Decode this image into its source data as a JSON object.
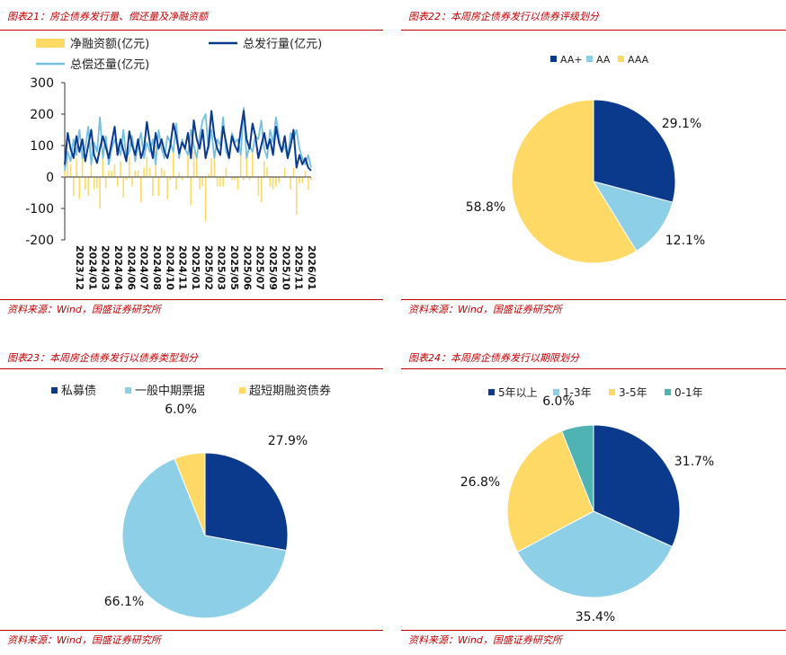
{
  "panels": [
    {
      "title": "图表21：房企债券发行量、偿还量及净融资额",
      "source": "资料来源：Wind，国盛证券研究所"
    },
    {
      "title": "图表22：本周房企债券发行以债券评级划分",
      "source": "资料来源：Wind，国盛证券研究所"
    },
    {
      "title": "图表23：本周房企债券发行以债券类型划分",
      "source": "资料来源：Wind，国盛证券研究所"
    },
    {
      "title": "图表24：本周房企债券发行以期限划分",
      "source": "资料来源：Wind，国盛证券研究所"
    }
  ],
  "chart_data": [
    {
      "type": "line",
      "title": "",
      "ylim": [
        -200,
        300
      ],
      "yticks": [
        "300",
        "200",
        "100",
        "0",
        "-100",
        "-200"
      ],
      "x_tick_labels": [
        "2023/12",
        "2024/01",
        "2024/03",
        "2024/04",
        "2024/06",
        "2024/07",
        "2024/08",
        "2024/10",
        "2024/11",
        "2025/01",
        "2025/02",
        "2025/03",
        "2025/05",
        "2025/06",
        "2025/07",
        "2025/09",
        "2025/10",
        "2025/11",
        "2026/01"
      ],
      "legend": [
        "净融资额(亿元)",
        "总发行量(亿元)",
        "总偿还量(亿元)"
      ],
      "colors": {
        "net": "#ffd966",
        "issue": "#0b3a8c",
        "repay": "#74c0e0"
      },
      "series": [
        {
          "name": "总发行量(亿元)",
          "values": [
            40,
            140,
            90,
            60,
            130,
            80,
            120,
            50,
            100,
            150,
            70,
            45,
            90,
            130,
            95,
            60,
            110,
            160,
            70,
            120,
            85,
            50,
            145,
            100,
            70,
            120,
            60,
            90,
            175,
            110,
            60,
            140,
            90,
            120,
            80,
            60,
            100,
            170,
            130,
            75,
            110,
            90,
            140,
            60,
            180,
            120,
            90,
            150,
            60,
            100,
            210,
            130,
            90,
            70,
            160,
            110,
            60,
            130,
            100,
            80,
            150,
            210,
            120,
            90,
            170,
            130,
            60,
            100,
            140,
            90,
            120,
            70,
            160,
            110,
            80,
            130,
            60,
            100,
            150,
            30,
            70,
            40,
            60,
            30,
            20
          ]
        },
        {
          "name": "总偿还量(亿元)",
          "values": [
            20,
            80,
            50,
            120,
            70,
            150,
            60,
            90,
            160,
            40,
            110,
            80,
            190,
            60,
            130,
            40,
            90,
            120,
            100,
            70,
            150,
            60,
            80,
            130,
            50,
            100,
            140,
            60,
            110,
            80,
            120,
            40,
            150,
            90,
            60,
            130,
            110,
            80,
            170,
            60,
            120,
            90,
            70,
            150,
            100,
            60,
            130,
            180,
            200,
            90,
            150,
            60,
            120,
            100,
            190,
            80,
            60,
            140,
            110,
            120,
            70,
            220,
            60,
            100,
            80,
            130,
            120,
            180,
            90,
            60,
            150,
            110,
            190,
            130,
            80,
            100,
            60,
            140,
            120,
            150,
            90,
            60,
            40,
            70,
            30
          ]
        },
        {
          "name": "净融资额(亿元)",
          "values": [
            20,
            60,
            40,
            -60,
            60,
            -70,
            60,
            -40,
            -60,
            110,
            -40,
            -35,
            -100,
            70,
            -35,
            20,
            20,
            40,
            -30,
            50,
            -65,
            -10,
            65,
            -30,
            20,
            20,
            -80,
            30,
            65,
            30,
            -60,
            100,
            -60,
            30,
            20,
            -70,
            -10,
            90,
            -40,
            15,
            -10,
            0,
            70,
            -90,
            80,
            60,
            -40,
            -30,
            -140,
            10,
            60,
            70,
            -30,
            -30,
            -30,
            30,
            0,
            -10,
            -10,
            -40,
            80,
            -10,
            60,
            -10,
            90,
            0,
            -60,
            -80,
            50,
            30,
            -30,
            -40,
            -30,
            -20,
            0,
            30,
            0,
            -40,
            30,
            -120,
            -20,
            -20,
            20,
            -40,
            -10
          ]
        }
      ]
    },
    {
      "type": "pie",
      "legend": [
        "AA+",
        "AA",
        "AAA"
      ],
      "values": [
        29.1,
        12.1,
        58.8
      ],
      "labels": [
        "29.1%",
        "12.1%",
        "58.8%"
      ],
      "colors": [
        "#0b3a8c",
        "#8ecfe8",
        "#ffd966"
      ]
    },
    {
      "type": "pie",
      "legend": [
        "私募债",
        "一般中期票据",
        "超短期融资债券"
      ],
      "values": [
        27.9,
        66.1,
        6.0
      ],
      "labels": [
        "27.9%",
        "66.1%",
        "6.0%"
      ],
      "colors": [
        "#0b3a8c",
        "#8ecfe8",
        "#ffd966"
      ]
    },
    {
      "type": "pie",
      "legend": [
        "5年以上",
        "1-3年",
        "3-5年",
        "0-1年"
      ],
      "values": [
        31.7,
        35.4,
        26.8,
        6.0
      ],
      "labels": [
        "31.7%",
        "35.4%",
        "26.8%",
        "6.0%"
      ],
      "colors": [
        "#0b3a8c",
        "#8ecfe8",
        "#ffd966",
        "#4fb3b3"
      ]
    }
  ]
}
